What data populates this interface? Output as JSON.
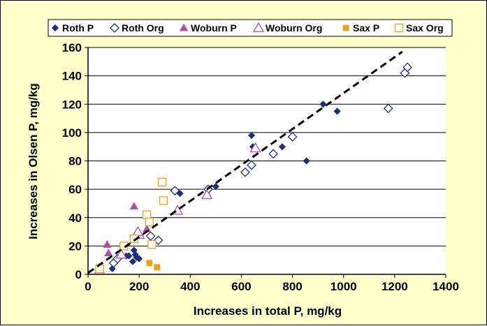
{
  "chart_data": {
    "type": "scatter",
    "title": "",
    "xlabel": "Increases in total P, mg/kg",
    "ylabel": "Increases in Olsen P, mg/kg",
    "xlim": [
      0,
      1400
    ],
    "ylim": [
      0,
      160
    ],
    "x_ticks": [
      "0",
      "200",
      "400",
      "600",
      "800",
      "1000",
      "1200",
      "1400"
    ],
    "y_ticks": [
      "0",
      "20",
      "40",
      "60",
      "80",
      "100",
      "120",
      "140",
      "160"
    ],
    "grid": "horizontal",
    "legend_position": "top",
    "series": [
      {
        "name": "Roth P",
        "marker": "diamond-filled",
        "color": "#1f2d7f",
        "points": [
          [
            95,
            4
          ],
          [
            150,
            13
          ],
          [
            160,
            13
          ],
          [
            175,
            9
          ],
          [
            180,
            17
          ],
          [
            185,
            14
          ],
          [
            190,
            12
          ],
          [
            200,
            11
          ],
          [
            360,
            57
          ],
          [
            500,
            62
          ],
          [
            640,
            98
          ],
          [
            645,
            90
          ],
          [
            760,
            90
          ],
          [
            855,
            80
          ],
          [
            920,
            120
          ],
          [
            975,
            115
          ]
        ]
      },
      {
        "name": "Roth Org",
        "marker": "diamond-open",
        "color": "#1f2d7f",
        "points": [
          [
            100,
            8
          ],
          [
            115,
            11
          ],
          [
            245,
            27
          ],
          [
            275,
            24
          ],
          [
            340,
            59
          ],
          [
            470,
            60
          ],
          [
            615,
            72
          ],
          [
            640,
            77
          ],
          [
            725,
            85
          ],
          [
            800,
            97
          ],
          [
            1175,
            117
          ],
          [
            1240,
            142
          ],
          [
            1250,
            146
          ]
        ]
      },
      {
        "name": "Woburn P",
        "marker": "triangle-filled",
        "color": "#b0509e",
        "points": [
          [
            75,
            21
          ],
          [
            80,
            15
          ],
          [
            180,
            48
          ],
          [
            230,
            32
          ]
        ]
      },
      {
        "name": "Woburn Org",
        "marker": "triangle-open",
        "color": "#b0509e",
        "points": [
          [
            45,
            3
          ],
          [
            130,
            14
          ],
          [
            200,
            28
          ],
          [
            195,
            30
          ],
          [
            350,
            45
          ],
          [
            465,
            56
          ],
          [
            655,
            89
          ]
        ]
      },
      {
        "name": "Sax P",
        "marker": "square-filled",
        "color": "#e8a317",
        "points": [
          [
            240,
            8
          ],
          [
            270,
            5
          ]
        ]
      },
      {
        "name": "Sax Org",
        "marker": "square-open",
        "color": "#e8a317",
        "points": [
          [
            45,
            4
          ],
          [
            140,
            20
          ],
          [
            180,
            25
          ],
          [
            230,
            42
          ],
          [
            240,
            37
          ],
          [
            250,
            21
          ],
          [
            290,
            65
          ],
          [
            295,
            52
          ]
        ]
      }
    ],
    "trendline": {
      "style": "dashed",
      "color": "#000000",
      "from": [
        0,
        1
      ],
      "to": [
        1230,
        157
      ]
    }
  }
}
